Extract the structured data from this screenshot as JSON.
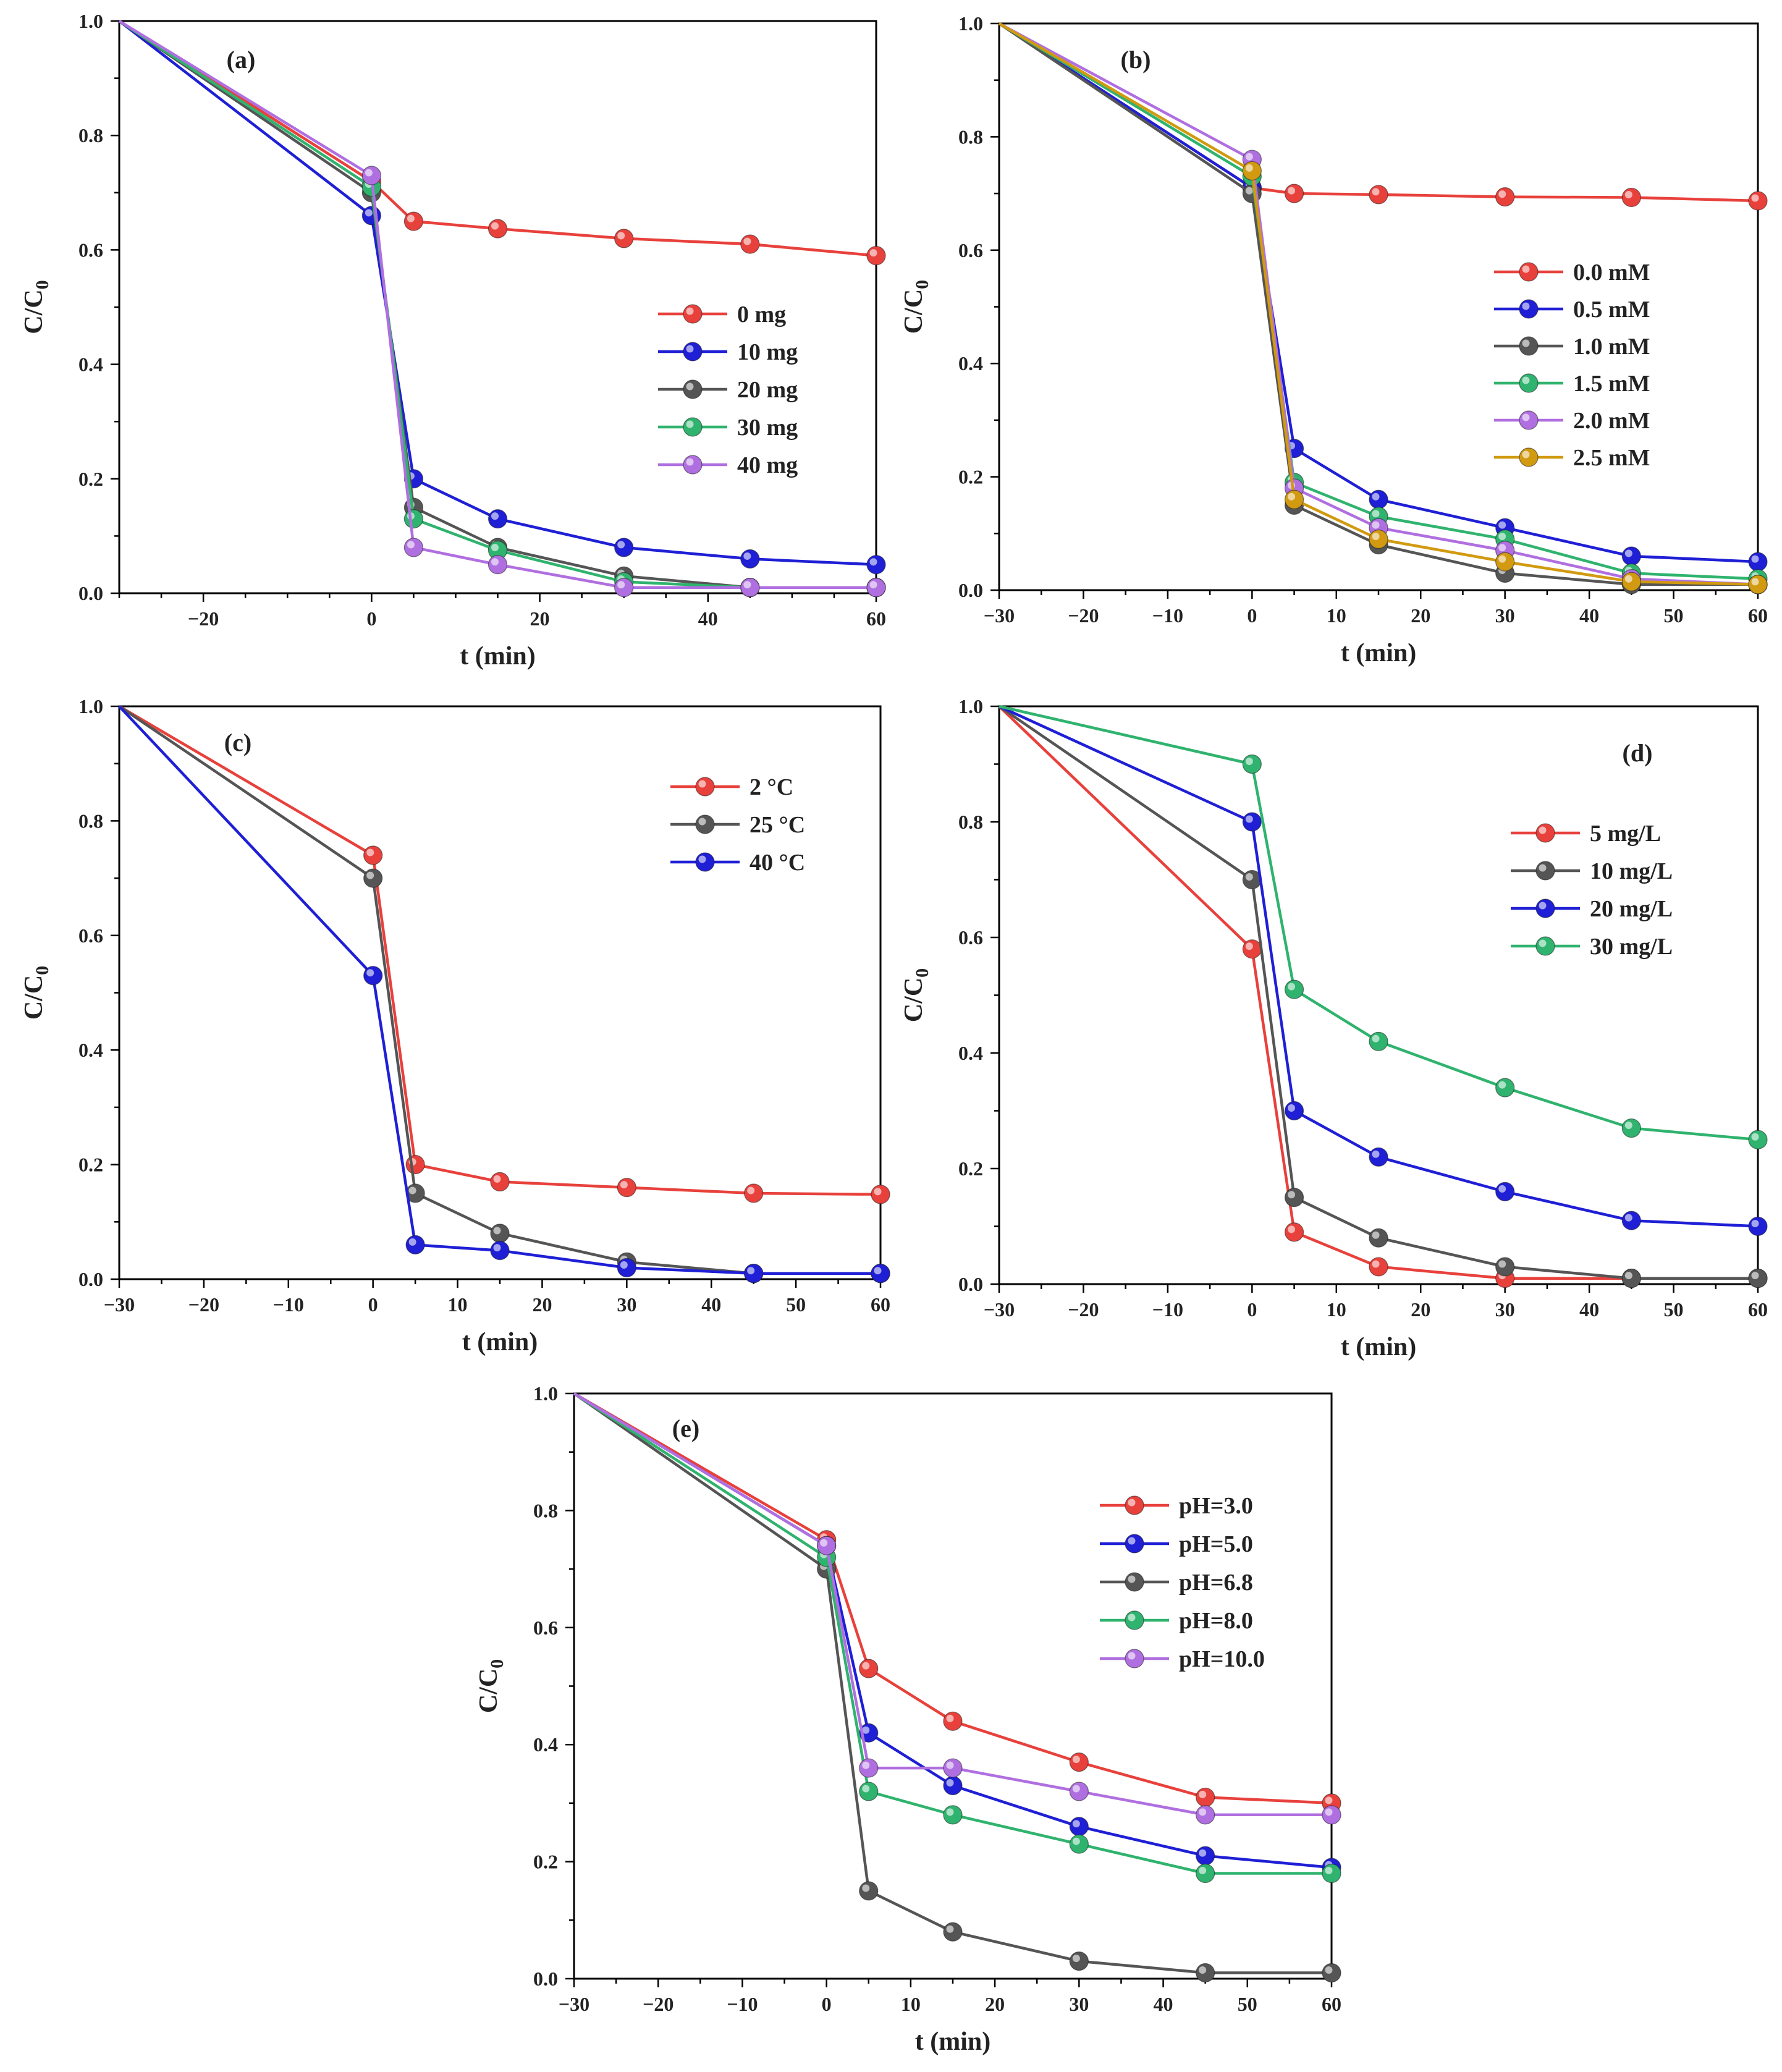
{
  "chart_data": [
    {
      "type": "line",
      "panel_label": "(a)",
      "xlabel": "t (min)",
      "ylabel": "C/C0",
      "xlim": [
        -30,
        60
      ],
      "ylim": [
        0,
        1.0
      ],
      "xticks": [
        -20,
        0,
        20,
        40,
        60
      ],
      "xtick_labels": [
        "−20",
        "0",
        "20",
        "40",
        "60"
      ],
      "yticks": [
        0,
        0.2,
        0.4,
        0.6,
        0.8,
        1.0
      ],
      "ytick_labels": [
        "0.0",
        "0.2",
        "0.4",
        "0.6",
        "0.8",
        "1.0"
      ],
      "legend_position": "center-right",
      "x": [
        -30,
        0,
        5,
        15,
        30,
        45,
        60
      ],
      "series": [
        {
          "name": "0 mg",
          "color": "#e8413c",
          "values": [
            1.0,
            0.72,
            0.65,
            0.637,
            0.62,
            0.61,
            0.59
          ]
        },
        {
          "name": "10 mg",
          "color": "#1f1fd6",
          "values": [
            1.0,
            0.66,
            0.2,
            0.13,
            0.08,
            0.06,
            0.05
          ]
        },
        {
          "name": "20 mg",
          "color": "#555555",
          "values": [
            1.0,
            0.7,
            0.15,
            0.08,
            0.03,
            0.01,
            0.01
          ]
        },
        {
          "name": "30 mg",
          "color": "#2fb36e",
          "values": [
            1.0,
            0.71,
            0.13,
            0.075,
            0.02,
            0.01,
            0.01
          ]
        },
        {
          "name": "40 mg",
          "color": "#b06fe0",
          "values": [
            1.0,
            0.73,
            0.08,
            0.05,
            0.01,
            0.01,
            0.01
          ]
        }
      ]
    },
    {
      "type": "line",
      "panel_label": "(b)",
      "xlabel": "t (min)",
      "ylabel": "C/C0",
      "xlim": [
        -30,
        60
      ],
      "ylim": [
        0,
        1.0
      ],
      "xticks": [
        -30,
        -20,
        -10,
        0,
        10,
        20,
        30,
        40,
        50,
        60
      ],
      "xtick_labels": [
        "−30",
        "−20",
        "−10",
        "0",
        "10",
        "20",
        "30",
        "40",
        "50",
        "60"
      ],
      "yticks": [
        0,
        0.2,
        0.4,
        0.6,
        0.8,
        1.0
      ],
      "ytick_labels": [
        "0.0",
        "0.2",
        "0.4",
        "0.6",
        "0.8",
        "1.0"
      ],
      "legend_position": "center-right",
      "x": [
        -30,
        0,
        5,
        15,
        30,
        45,
        60
      ],
      "series": [
        {
          "name": "0.0 mM",
          "color": "#e8413c",
          "values": [
            1.0,
            0.71,
            0.7,
            0.698,
            0.694,
            0.693,
            0.687
          ]
        },
        {
          "name": "0.5 mM",
          "color": "#1f1fd6",
          "values": [
            1.0,
            0.71,
            0.25,
            0.16,
            0.11,
            0.06,
            0.05
          ]
        },
        {
          "name": "1.0 mM",
          "color": "#555555",
          "values": [
            1.0,
            0.7,
            0.15,
            0.08,
            0.03,
            0.01,
            0.01
          ]
        },
        {
          "name": "1.5 mM",
          "color": "#2fb36e",
          "values": [
            1.0,
            0.73,
            0.19,
            0.13,
            0.09,
            0.03,
            0.02
          ]
        },
        {
          "name": "2.0 mM",
          "color": "#b06fe0",
          "values": [
            1.0,
            0.76,
            0.18,
            0.11,
            0.07,
            0.02,
            0.01
          ]
        },
        {
          "name": "2.5 mM",
          "color": "#d19a10",
          "values": [
            1.0,
            0.74,
            0.16,
            0.09,
            0.05,
            0.015,
            0.01
          ]
        }
      ]
    },
    {
      "type": "line",
      "panel_label": "(c)",
      "xlabel": "t (min)",
      "ylabel": "C/C0",
      "xlim": [
        -30,
        60
      ],
      "ylim": [
        0,
        1.0
      ],
      "xticks": [
        -30,
        -20,
        -10,
        0,
        10,
        20,
        30,
        40,
        50,
        60
      ],
      "xtick_labels": [
        "−30",
        "−20",
        "−10",
        "0",
        "10",
        "20",
        "30",
        "40",
        "50",
        "60"
      ],
      "yticks": [
        0,
        0.2,
        0.4,
        0.6,
        0.8,
        1.0
      ],
      "ytick_labels": [
        "0.0",
        "0.2",
        "0.4",
        "0.6",
        "0.8",
        "1.0"
      ],
      "legend_position": "top-right",
      "x": [
        -30,
        0,
        5,
        15,
        30,
        45,
        60
      ],
      "series": [
        {
          "name": "2 °C",
          "color": "#e8413c",
          "values": [
            1.0,
            0.74,
            0.2,
            0.17,
            0.16,
            0.15,
            0.148
          ]
        },
        {
          "name": "25 °C",
          "color": "#555555",
          "values": [
            1.0,
            0.7,
            0.15,
            0.08,
            0.03,
            0.01,
            0.01
          ]
        },
        {
          "name": "40 °C",
          "color": "#1f1fd6",
          "values": [
            1.0,
            0.53,
            0.06,
            0.05,
            0.02,
            0.01,
            0.01
          ]
        }
      ]
    },
    {
      "type": "line",
      "panel_label": "(d)",
      "xlabel": "t (min)",
      "ylabel": "C/C0",
      "xlim": [
        -30,
        60
      ],
      "ylim": [
        0,
        1.0
      ],
      "xticks": [
        -30,
        -20,
        -10,
        0,
        10,
        20,
        30,
        40,
        50,
        60
      ],
      "xtick_labels": [
        "−30",
        "−20",
        "−10",
        "0",
        "10",
        "20",
        "30",
        "40",
        "50",
        "60"
      ],
      "yticks": [
        0,
        0.2,
        0.4,
        0.6,
        0.8,
        1.0
      ],
      "ytick_labels": [
        "0.0",
        "0.2",
        "0.4",
        "0.6",
        "0.8",
        "1.0"
      ],
      "legend_position": "top-right",
      "x": [
        -30,
        0,
        5,
        15,
        30,
        45,
        60
      ],
      "series": [
        {
          "name": "5 mg/L",
          "color": "#e8413c",
          "values": [
            1.0,
            0.58,
            0.09,
            0.03,
            0.01,
            0.01,
            0.01
          ]
        },
        {
          "name": "10 mg/L",
          "color": "#555555",
          "values": [
            1.0,
            0.7,
            0.15,
            0.08,
            0.03,
            0.01,
            0.01
          ]
        },
        {
          "name": "20 mg/L",
          "color": "#1f1fd6",
          "values": [
            1.0,
            0.8,
            0.3,
            0.22,
            0.16,
            0.11,
            0.1
          ]
        },
        {
          "name": "30 mg/L",
          "color": "#2fb36e",
          "values": [
            1.0,
            0.9,
            0.51,
            0.42,
            0.34,
            0.27,
            0.25
          ]
        }
      ]
    },
    {
      "type": "line",
      "panel_label": "(e)",
      "xlabel": "t (min)",
      "ylabel": "C/C0",
      "xlim": [
        -30,
        60
      ],
      "ylim": [
        0,
        1.0
      ],
      "xticks": [
        -30,
        -20,
        -10,
        0,
        10,
        20,
        30,
        40,
        50,
        60
      ],
      "xtick_labels": [
        "−30",
        "−20",
        "−10",
        "0",
        "10",
        "20",
        "30",
        "40",
        "50",
        "60"
      ],
      "yticks": [
        0,
        0.2,
        0.4,
        0.6,
        0.8,
        1.0
      ],
      "ytick_labels": [
        "0.0",
        "0.2",
        "0.4",
        "0.6",
        "0.8",
        "1.0"
      ],
      "legend_position": "top-right",
      "x": [
        -30,
        0,
        5,
        15,
        30,
        45,
        60
      ],
      "series": [
        {
          "name": "pH=3.0",
          "color": "#e8413c",
          "values": [
            1.0,
            0.75,
            0.53,
            0.44,
            0.37,
            0.31,
            0.3
          ]
        },
        {
          "name": "pH=5.0",
          "color": "#1f1fd6",
          "values": [
            1.0,
            0.74,
            0.42,
            0.33,
            0.26,
            0.21,
            0.19
          ]
        },
        {
          "name": "pH=6.8",
          "color": "#555555",
          "values": [
            1.0,
            0.7,
            0.15,
            0.08,
            0.03,
            0.01,
            0.01
          ]
        },
        {
          "name": "pH=8.0",
          "color": "#2fb36e",
          "values": [
            1.0,
            0.72,
            0.32,
            0.28,
            0.23,
            0.18,
            0.18
          ]
        },
        {
          "name": "pH=10.0",
          "color": "#b06fe0",
          "values": [
            1.0,
            0.74,
            0.36,
            0.36,
            0.32,
            0.28,
            0.28
          ]
        }
      ]
    }
  ]
}
